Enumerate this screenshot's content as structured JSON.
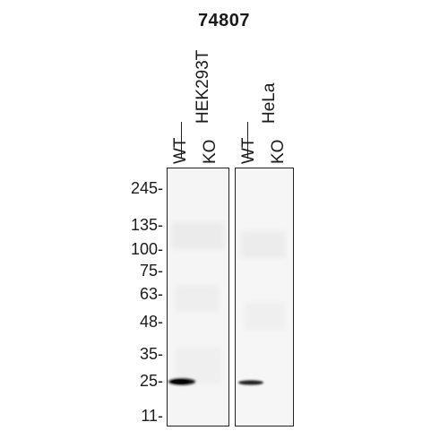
{
  "title": "74807",
  "cell_lines": [
    {
      "name": "HEK293T",
      "lanes": [
        "WT",
        "KO"
      ]
    },
    {
      "name": "HeLa",
      "lanes": [
        "WT",
        "KO"
      ]
    }
  ],
  "markers": [
    "245-",
    "135-",
    "100-",
    "75-",
    "63-",
    "48-",
    "35-",
    "25-",
    "11-"
  ],
  "band_color": "#111111",
  "blot_background": "#f4f4f4"
}
